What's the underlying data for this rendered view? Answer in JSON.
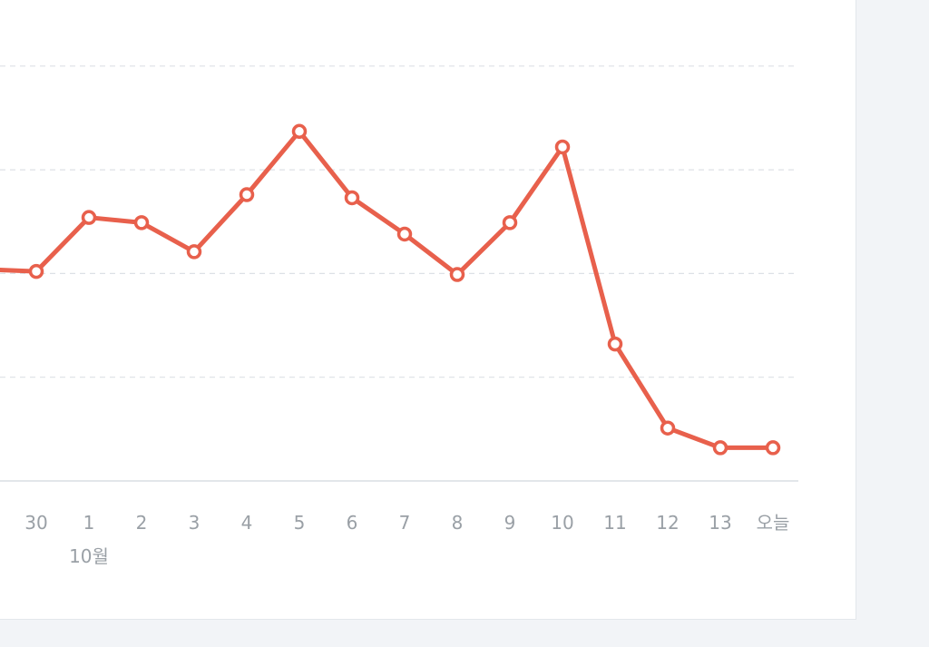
{
  "chart_data": {
    "type": "line",
    "title": "",
    "xlabel": "",
    "ylabel": "",
    "x": [
      "",
      "30",
      "1",
      "2",
      "3",
      "4",
      "5",
      "6",
      "7",
      "8",
      "9",
      "10",
      "11",
      "12",
      "13",
      "오늘"
    ],
    "month_label": "10월",
    "month_label_at": "1",
    "series": [
      {
        "name": "",
        "color": "#e8604c",
        "values": [
          2.04,
          2.02,
          2.54,
          2.49,
          2.21,
          2.76,
          3.37,
          2.73,
          2.38,
          1.99,
          2.49,
          3.22,
          1.32,
          0.51,
          0.32,
          0.32
        ]
      }
    ],
    "ylim": [
      0,
      4
    ],
    "gridlines": [
      1,
      2,
      3,
      4
    ],
    "grid": true,
    "legend": "none",
    "colors": {
      "line": "#e8604c",
      "point_fill": "#ffffff",
      "grid": "#dde1e6",
      "axis": "#d8dde3",
      "tick_text": "#9aa0a6"
    }
  }
}
